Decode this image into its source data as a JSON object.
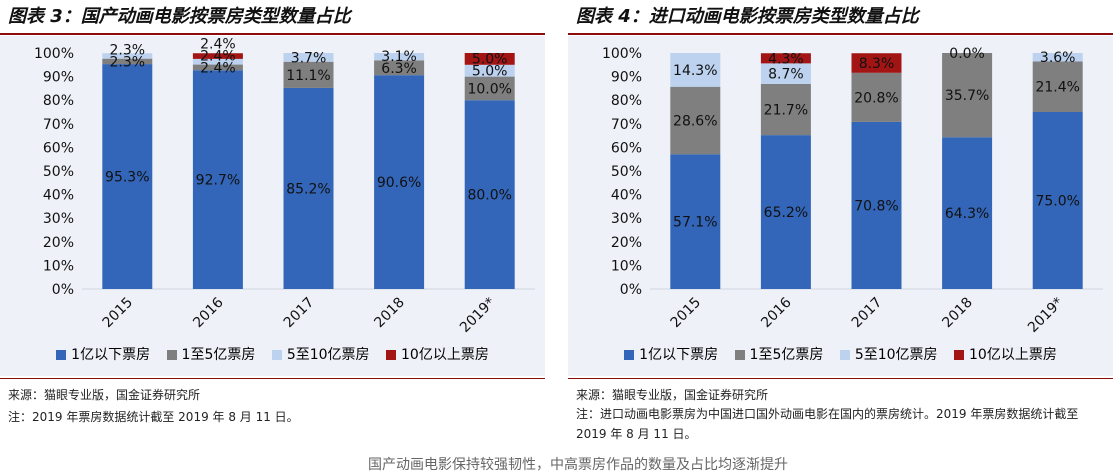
{
  "panels": [
    {
      "title": "图表 3：国产动画电影按票房类型数量占比",
      "source": "来源：猫眼专业版，国金证券研究所",
      "note": "注：2019 年票房数据统计截至 2019 年 8 月 11 日。"
    },
    {
      "title": "图表 4：进口动画电影按票房类型数量占比",
      "source": "来源：猫眼专业版，国金证券研究所",
      "note": "注：进口动画电影票房为中国进口国外动画电影在国内的票房统计。2019 年票房数据统计截至 2019 年 8 月 11 日。"
    }
  ],
  "legend": [
    "1亿以下票房",
    "1至5亿票房",
    "5至10亿票房",
    "10亿以上票房"
  ],
  "colors": [
    "#3366b8",
    "#7f7f7f",
    "#bcd2ef",
    "#a31515"
  ],
  "footer_text": "国产动画电影保持较强韧性，中高票房作品的数量及占比均逐渐提升",
  "chart_data": [
    {
      "type": "bar",
      "stacked": true,
      "categories": [
        "2015",
        "2016",
        "2017",
        "2018",
        "2019*"
      ],
      "ylim": [
        0,
        100
      ],
      "yticks": [
        "0%",
        "10%",
        "20%",
        "30%",
        "40%",
        "50%",
        "60%",
        "70%",
        "80%",
        "90%",
        "100%"
      ],
      "series": [
        {
          "name": "1亿以下票房",
          "values": [
            95.3,
            92.7,
            85.2,
            90.6,
            80.0
          ]
        },
        {
          "name": "1至5亿票房",
          "values": [
            2.3,
            2.4,
            11.1,
            6.3,
            10.0
          ]
        },
        {
          "name": "5至10亿票房",
          "values": [
            2.3,
            2.4,
            3.7,
            3.1,
            5.0
          ]
        },
        {
          "name": "10亿以上票房",
          "values": [
            0.0,
            2.4,
            0.0,
            0.0,
            5.0
          ]
        }
      ],
      "labels": [
        [
          "95.3%",
          "2.3%",
          "2.3%",
          ""
        ],
        [
          "92.7%",
          "2.4%",
          "2.4%",
          "2.4%"
        ],
        [
          "85.2%",
          "11.1%",
          "3.7%",
          ""
        ],
        [
          "90.6%",
          "6.3%",
          "3.1%",
          ""
        ],
        [
          "80.0%",
          "10.0%",
          "5.0%",
          "5.0%"
        ]
      ]
    },
    {
      "type": "bar",
      "stacked": true,
      "categories": [
        "2015",
        "2016",
        "2017",
        "2018",
        "2019*"
      ],
      "ylim": [
        0,
        100
      ],
      "yticks": [
        "0%",
        "10%",
        "20%",
        "30%",
        "40%",
        "50%",
        "60%",
        "70%",
        "80%",
        "90%",
        "100%"
      ],
      "series": [
        {
          "name": "1亿以下票房",
          "values": [
            57.1,
            65.2,
            70.8,
            64.3,
            75.0
          ]
        },
        {
          "name": "1至5亿票房",
          "values": [
            28.6,
            21.7,
            20.8,
            35.7,
            21.4
          ]
        },
        {
          "name": "5至10亿票房",
          "values": [
            14.3,
            8.7,
            0.0,
            0.0,
            3.6
          ]
        },
        {
          "name": "10亿以上票房",
          "values": [
            0.0,
            4.3,
            8.3,
            0.0,
            0.0
          ]
        }
      ],
      "labels": [
        [
          "57.1%",
          "28.6%",
          "14.3%",
          ""
        ],
        [
          "65.2%",
          "21.7%",
          "8.7%",
          "4.3%"
        ],
        [
          "70.8%",
          "20.8%",
          "",
          "8.3%"
        ],
        [
          "64.3%",
          "35.7%",
          "0.0%",
          ""
        ],
        [
          "75.0%",
          "21.4%",
          "3.6%",
          ""
        ]
      ]
    }
  ]
}
